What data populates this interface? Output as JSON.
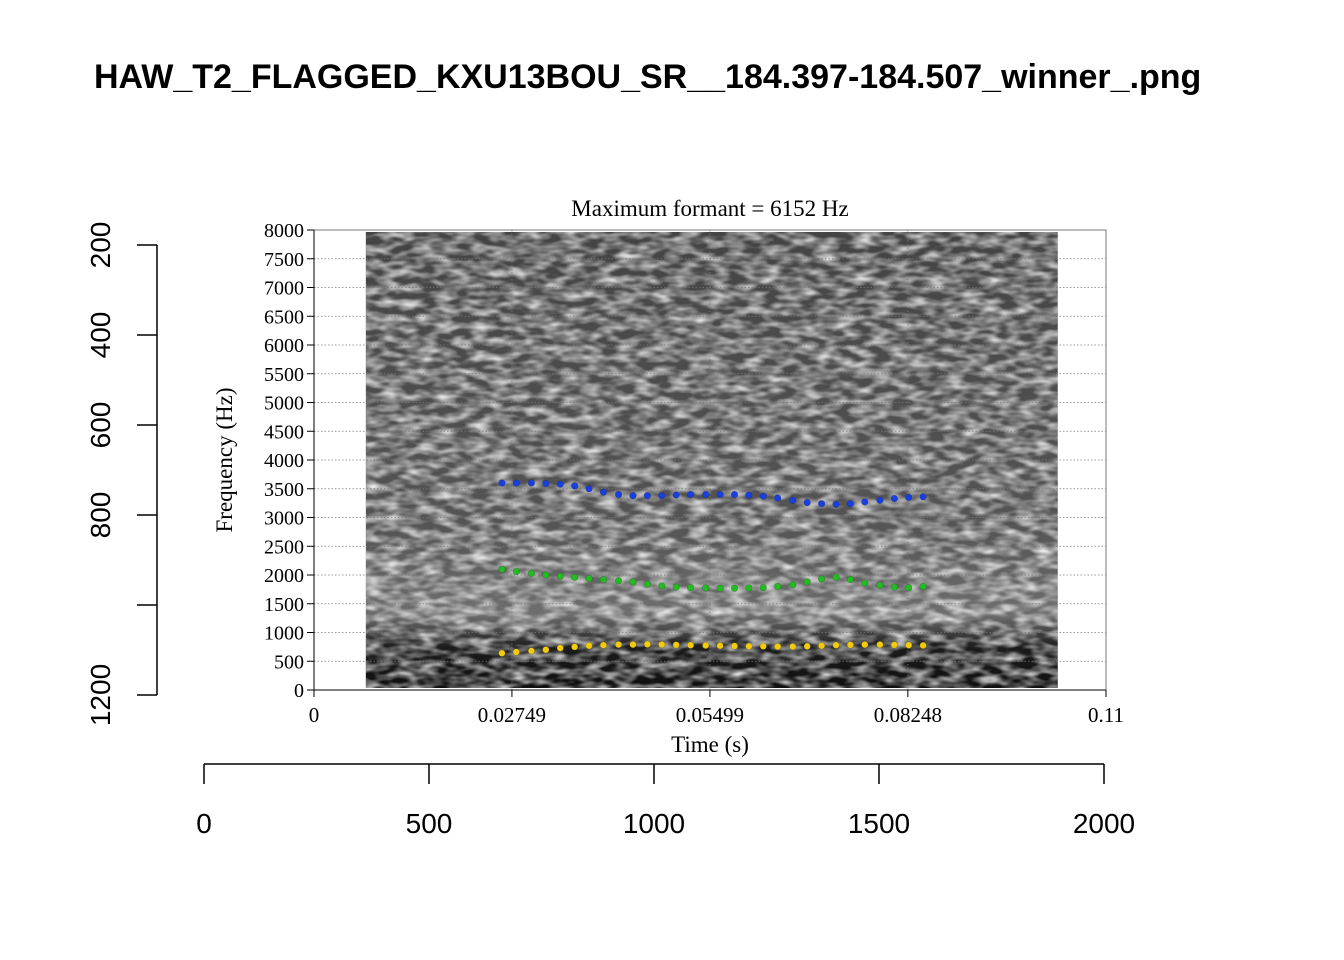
{
  "page_title": "HAW_T2_FLAGGED_KXU13BOU_SR__184.397-184.507_winner_.png",
  "colors": {
    "f1": "#f2cc0c",
    "f2": "#22bb22",
    "f3": "#1a3fe0",
    "grid": "#666666",
    "spectrogram_dark": "#0a0a0a",
    "spectrogram_light": "#d8d8d8"
  },
  "chart_data": [
    {
      "type": "scatter",
      "title": "Maximum formant  =  6152 Hz",
      "xlabel": "Time (s)",
      "ylabel": "Frequency (Hz)",
      "xlim": [
        0,
        0.11
      ],
      "ylim": [
        0,
        8000
      ],
      "x_ticks": [
        "0",
        "0.02749",
        "0.05499",
        "0.08248",
        "0.11"
      ],
      "x_tick_values": [
        0,
        0.02749,
        0.05499,
        0.08248,
        0.11
      ],
      "y_ticks": [
        "0",
        "500",
        "1000",
        "1500",
        "2000",
        "2500",
        "3000",
        "3500",
        "4000",
        "4500",
        "5000",
        "5500",
        "6000",
        "6500",
        "7000",
        "7500",
        "8000"
      ],
      "y_tick_values": [
        0,
        500,
        1000,
        1500,
        2000,
        2500,
        3000,
        3500,
        4000,
        4500,
        5000,
        5500,
        6000,
        6500,
        7000,
        7500,
        8000
      ],
      "grid": true,
      "background": "spectrogram",
      "spectrogram_time_range": [
        0.0072,
        0.1033
      ],
      "series": [
        {
          "color": "#f2cc0c",
          "x": [
            0.0261,
            0.0281,
            0.0302,
            0.0322,
            0.0342,
            0.0362,
            0.0382,
            0.0402,
            0.0423,
            0.0443,
            0.0463,
            0.0483,
            0.0503,
            0.0523,
            0.0544,
            0.0564,
            0.0584,
            0.0604,
            0.0624,
            0.0644,
            0.0665,
            0.0685,
            0.0705,
            0.0725,
            0.0745,
            0.0765,
            0.0786,
            0.0806,
            0.0826,
            0.0846
          ],
          "y": [
            640,
            660,
            680,
            700,
            730,
            750,
            770,
            780,
            790,
            790,
            795,
            790,
            785,
            780,
            775,
            770,
            765,
            760,
            760,
            755,
            755,
            760,
            770,
            780,
            785,
            790,
            790,
            785,
            780,
            775
          ]
        },
        {
          "color": "#22bb22",
          "x": [
            0.0261,
            0.0281,
            0.0302,
            0.0322,
            0.0342,
            0.0362,
            0.0382,
            0.0402,
            0.0423,
            0.0443,
            0.0463,
            0.0483,
            0.0503,
            0.0523,
            0.0544,
            0.0564,
            0.0584,
            0.0604,
            0.0624,
            0.0644,
            0.0665,
            0.0685,
            0.0705,
            0.0725,
            0.0745,
            0.0765,
            0.0786,
            0.0806,
            0.0826,
            0.0846
          ],
          "y": [
            2100,
            2060,
            2030,
            2000,
            1980,
            1960,
            1940,
            1920,
            1900,
            1880,
            1840,
            1810,
            1790,
            1780,
            1775,
            1770,
            1770,
            1775,
            1780,
            1800,
            1830,
            1880,
            1930,
            1960,
            1920,
            1860,
            1820,
            1790,
            1780,
            1800
          ]
        },
        {
          "color": "#1a3fe0",
          "x": [
            0.0261,
            0.0281,
            0.0302,
            0.0322,
            0.0342,
            0.0362,
            0.0382,
            0.0402,
            0.0423,
            0.0443,
            0.0463,
            0.0483,
            0.0503,
            0.0523,
            0.0544,
            0.0564,
            0.0584,
            0.0604,
            0.0624,
            0.0644,
            0.0665,
            0.0685,
            0.0705,
            0.0725,
            0.0745,
            0.0765,
            0.0786,
            0.0806,
            0.0826,
            0.0846
          ],
          "y": [
            3600,
            3600,
            3600,
            3590,
            3580,
            3550,
            3500,
            3440,
            3400,
            3380,
            3380,
            3380,
            3390,
            3400,
            3400,
            3400,
            3400,
            3390,
            3370,
            3340,
            3300,
            3260,
            3240,
            3230,
            3240,
            3270,
            3300,
            3330,
            3350,
            3360
          ]
        }
      ]
    },
    {
      "type": "axis",
      "orientation": "left",
      "range": [
        200,
        1200
      ],
      "inverted": true,
      "tick_values": [
        200,
        400,
        600,
        800,
        1000,
        1200
      ],
      "tick_labels": [
        "200",
        "400",
        "600",
        "800",
        "",
        "1200"
      ]
    },
    {
      "type": "axis",
      "orientation": "bottom",
      "range": [
        0,
        2000
      ],
      "tick_values": [
        0,
        500,
        1000,
        1500,
        2000
      ],
      "tick_labels": [
        "0",
        "500",
        "1000",
        "1500",
        "2000"
      ]
    }
  ]
}
